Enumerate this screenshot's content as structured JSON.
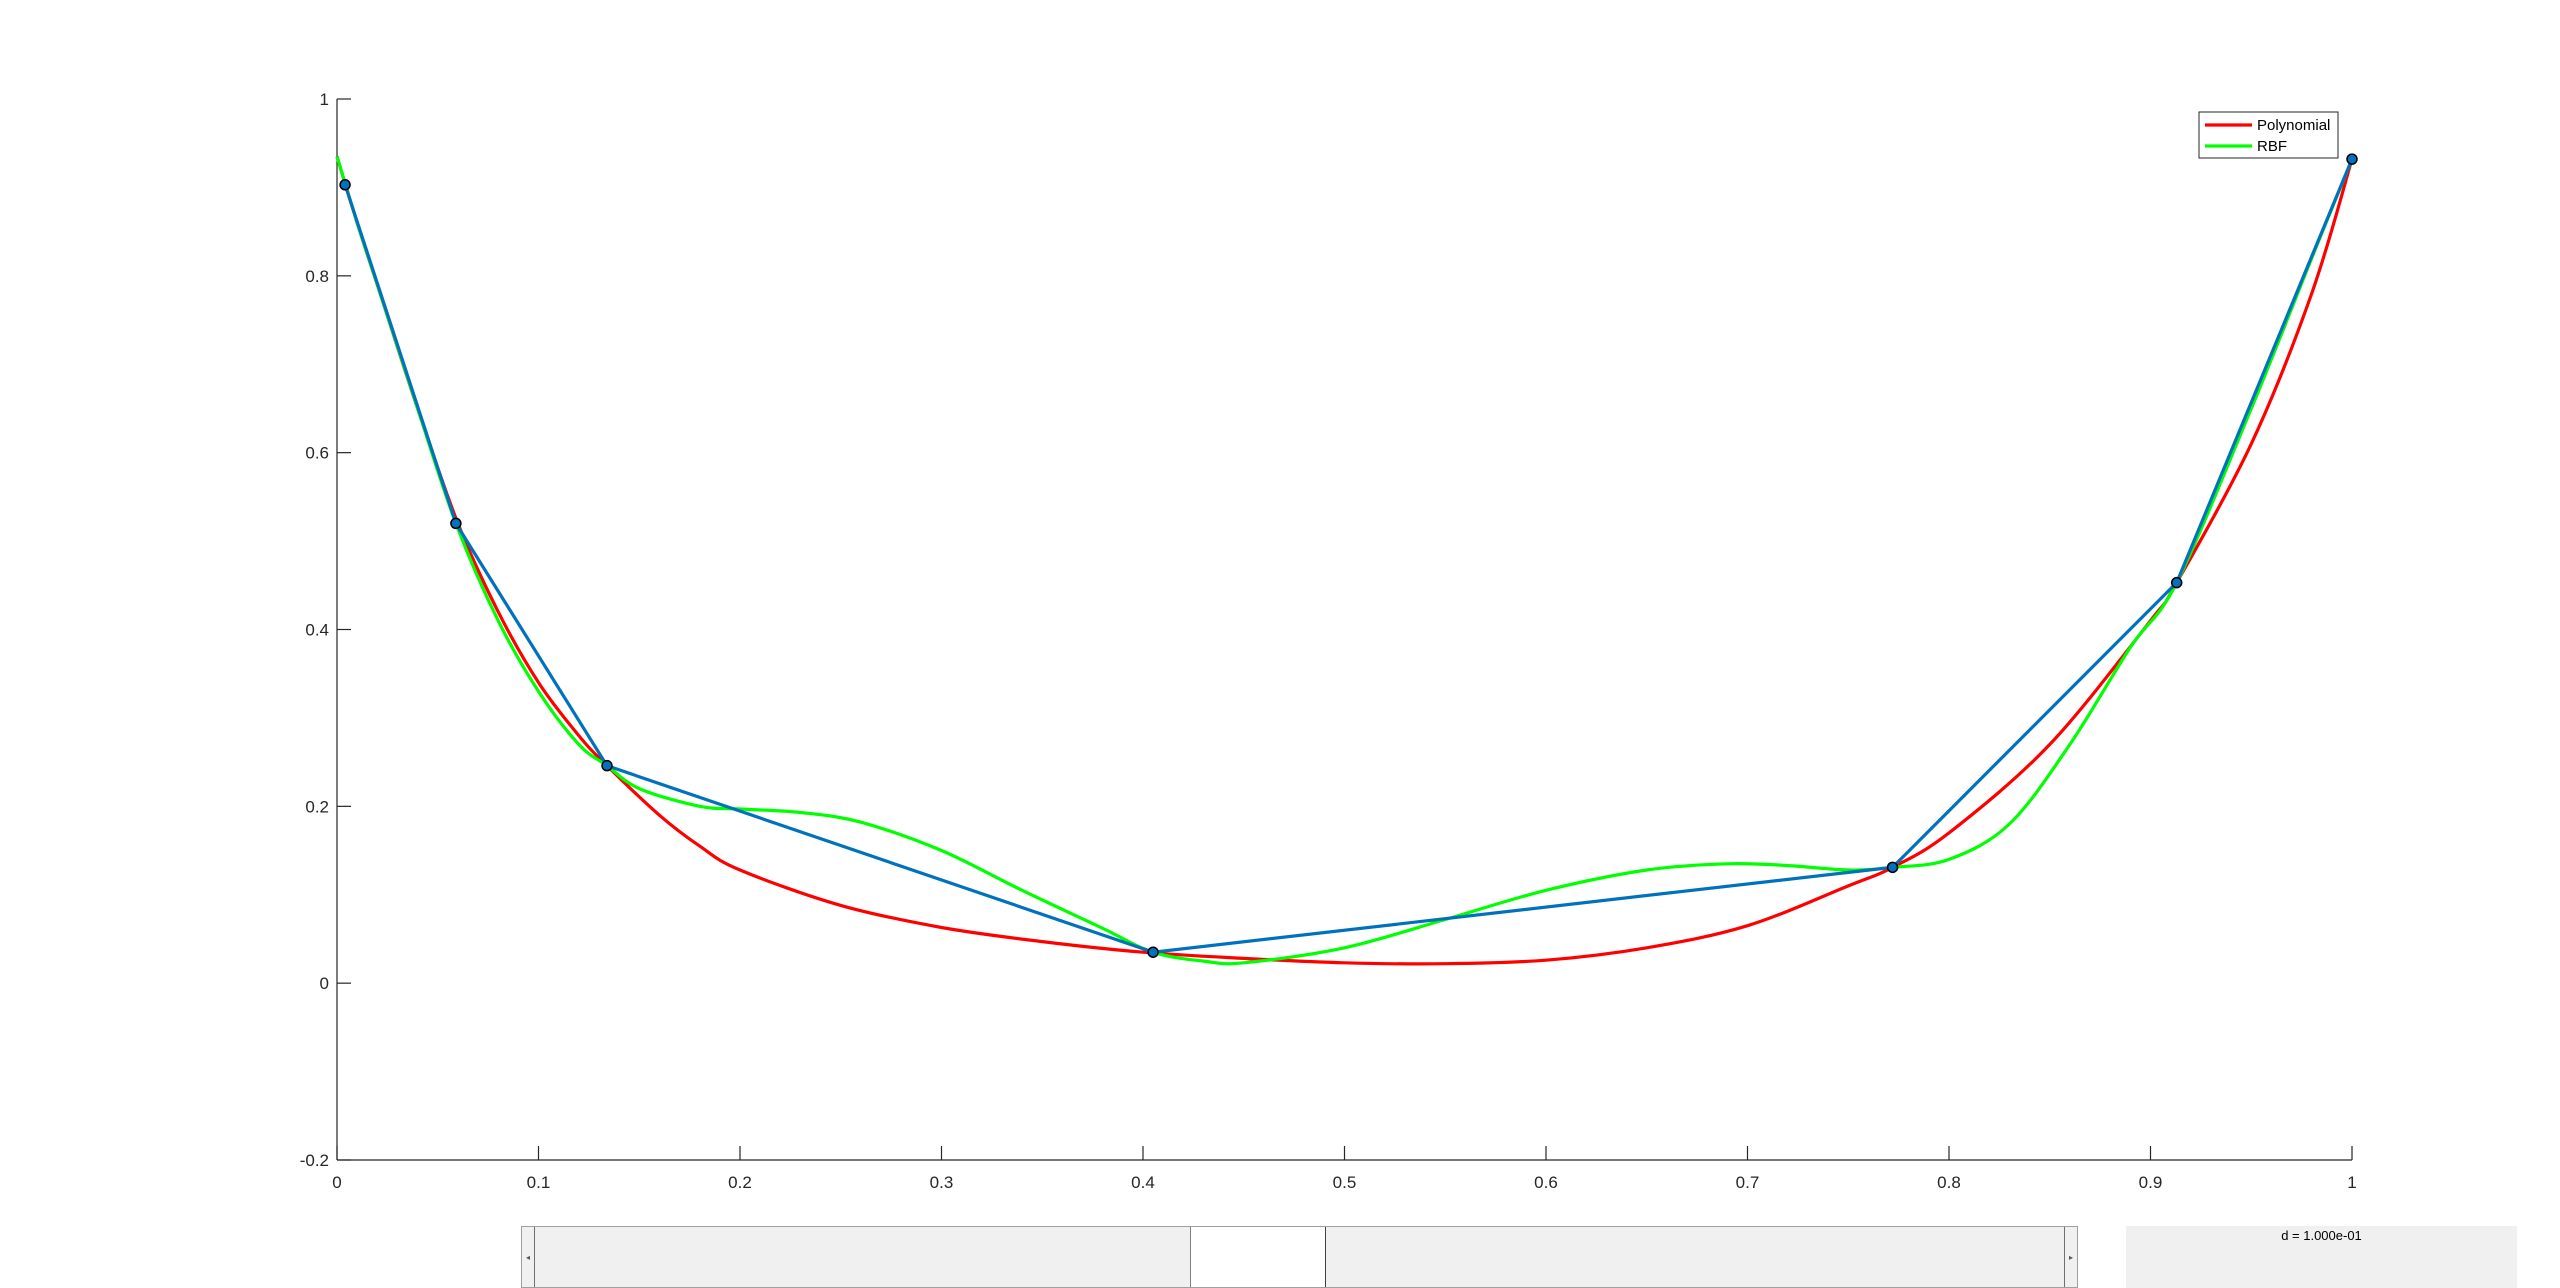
{
  "chart_data": {
    "type": "line",
    "xlim": [
      0,
      1
    ],
    "ylim": [
      -0.2,
      1
    ],
    "x_ticks": [
      "0",
      "0.1",
      "0.2",
      "0.3",
      "0.4",
      "0.5",
      "0.6",
      "0.7",
      "0.8",
      "0.9",
      "1"
    ],
    "y_ticks": [
      "-0.2",
      "0",
      "0.2",
      "0.4",
      "0.6",
      "0.8",
      "1"
    ],
    "grid": false,
    "legend_position": "top-right",
    "points": {
      "x": [
        0.004,
        0.059,
        0.134,
        0.405,
        0.772,
        0.913,
        1.0
      ],
      "y": [
        0.903,
        0.52,
        0.246,
        0.035,
        0.131,
        0.453,
        0.932
      ],
      "color": "#0072bd"
    },
    "series": [
      {
        "name": "Polynomial",
        "color": "#ff0000",
        "x": [
          0.0,
          0.01,
          0.02,
          0.04,
          0.06,
          0.08,
          0.1,
          0.12,
          0.134,
          0.16,
          0.18,
          0.2,
          0.25,
          0.3,
          0.35,
          0.4,
          0.45,
          0.5,
          0.55,
          0.6,
          0.65,
          0.7,
          0.75,
          0.772,
          0.8,
          0.85,
          0.9,
          0.913,
          0.95,
          0.98,
          1.0
        ],
        "y": [
          0.935,
          0.86,
          0.79,
          0.65,
          0.52,
          0.42,
          0.34,
          0.28,
          0.246,
          0.19,
          0.155,
          0.128,
          0.088,
          0.063,
          0.047,
          0.035,
          0.028,
          0.023,
          0.022,
          0.026,
          0.04,
          0.065,
          0.11,
          0.131,
          0.17,
          0.27,
          0.41,
          0.453,
          0.61,
          0.78,
          0.932
        ]
      },
      {
        "name": "RBF",
        "color": "#00ff00",
        "x": [
          0.0,
          0.01,
          0.02,
          0.04,
          0.059,
          0.08,
          0.1,
          0.12,
          0.134,
          0.15,
          0.18,
          0.2,
          0.23,
          0.26,
          0.3,
          0.34,
          0.38,
          0.405,
          0.43,
          0.45,
          0.5,
          0.55,
          0.6,
          0.65,
          0.69,
          0.72,
          0.75,
          0.772,
          0.8,
          0.83,
          0.86,
          0.89,
          0.913,
          0.95,
          0.98,
          1.0
        ],
        "y": [
          0.935,
          0.86,
          0.79,
          0.65,
          0.52,
          0.41,
          0.33,
          0.27,
          0.246,
          0.22,
          0.2,
          0.197,
          0.193,
          0.182,
          0.15,
          0.105,
          0.062,
          0.035,
          0.025,
          0.023,
          0.04,
          0.072,
          0.105,
          0.128,
          0.135,
          0.133,
          0.128,
          0.131,
          0.14,
          0.18,
          0.27,
          0.38,
          0.453,
          0.65,
          0.82,
          0.932
        ]
      }
    ]
  },
  "slider": {
    "value_fraction": 0.47,
    "left_arrow": "◂",
    "right_arrow": "▸"
  },
  "readout": {
    "text": "d = 1.000e-01"
  }
}
